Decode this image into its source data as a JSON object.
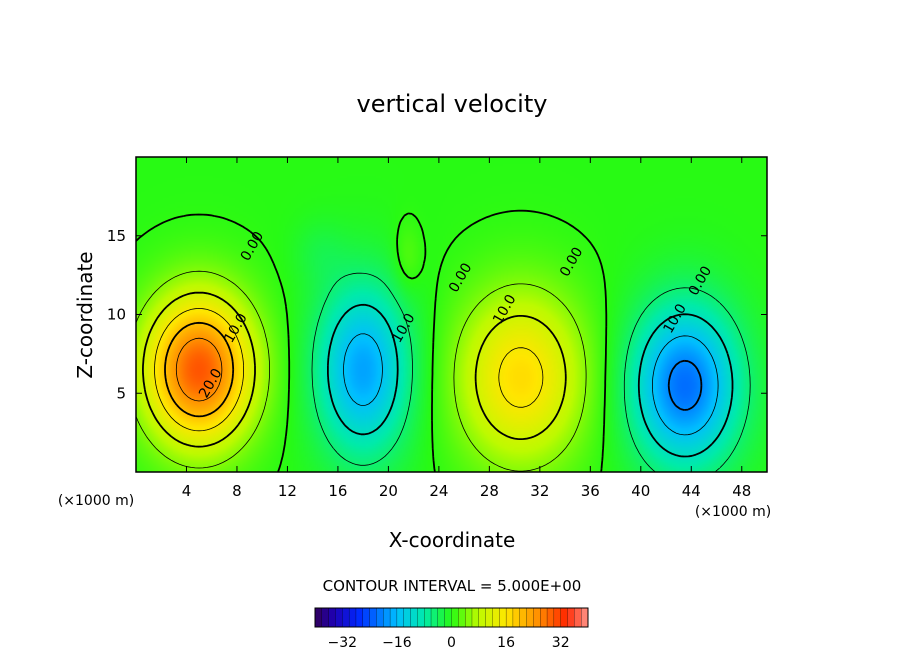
{
  "chart_data": {
    "type": "heatmap",
    "title": "vertical velocity",
    "xlabel": "X-coordinate",
    "ylabel": "Z-coordinate",
    "x_unit": "(×1000 m)",
    "y_unit": "(×1000 m)",
    "xlim": [
      0,
      50
    ],
    "ylim": [
      0,
      20
    ],
    "x_ticks": [
      4,
      8,
      12,
      16,
      20,
      24,
      28,
      32,
      36,
      40,
      44,
      48
    ],
    "y_ticks": [
      5,
      10,
      15
    ],
    "contour_interval_text": "CONTOUR INTERVAL = 5.000E+00",
    "contour_interval": 5,
    "colorbar": {
      "min": -40,
      "max": 40,
      "ticks": [
        -32,
        -16,
        0,
        16,
        32
      ]
    },
    "cells": [
      {
        "x": 5,
        "z": 6.5,
        "amp": 30,
        "sx": 3.0,
        "sz": 3.3
      },
      {
        "x": 18,
        "z": 6.5,
        "amp": -18,
        "sx": 2.6,
        "sz": 3.8
      },
      {
        "x": 30.5,
        "z": 6.0,
        "amp": 17,
        "sx": 3.5,
        "sz": 3.8
      },
      {
        "x": 43.5,
        "z": 5.5,
        "amp": -22,
        "sx": 3.0,
        "sz": 3.6
      },
      {
        "x": 21.5,
        "z": 13.5,
        "amp": 3,
        "sx": 0.8,
        "sz": 1.6
      },
      {
        "x": 14.5,
        "z": 14,
        "amp": -2,
        "sx": 1.5,
        "sz": 1.5
      }
    ],
    "contour_labels": [
      {
        "text": "20.0",
        "x": 6.2,
        "z": 5.5
      },
      {
        "text": "10.0",
        "x": 8.2,
        "z": 9.0
      },
      {
        "text": "0.00",
        "x": 9.5,
        "z": 14.2
      },
      {
        "text": "10.0",
        "x": 21.5,
        "z": 9.0
      },
      {
        "text": "0.00",
        "x": 26.0,
        "z": 12.2
      },
      {
        "text": "10.0",
        "x": 29.5,
        "z": 10.2
      },
      {
        "text": "0.00",
        "x": 34.8,
        "z": 13.2
      },
      {
        "text": "10.0",
        "x": 43.0,
        "z": 9.6
      },
      {
        "text": "0.00",
        "x": 45.0,
        "z": 12.0
      }
    ]
  }
}
